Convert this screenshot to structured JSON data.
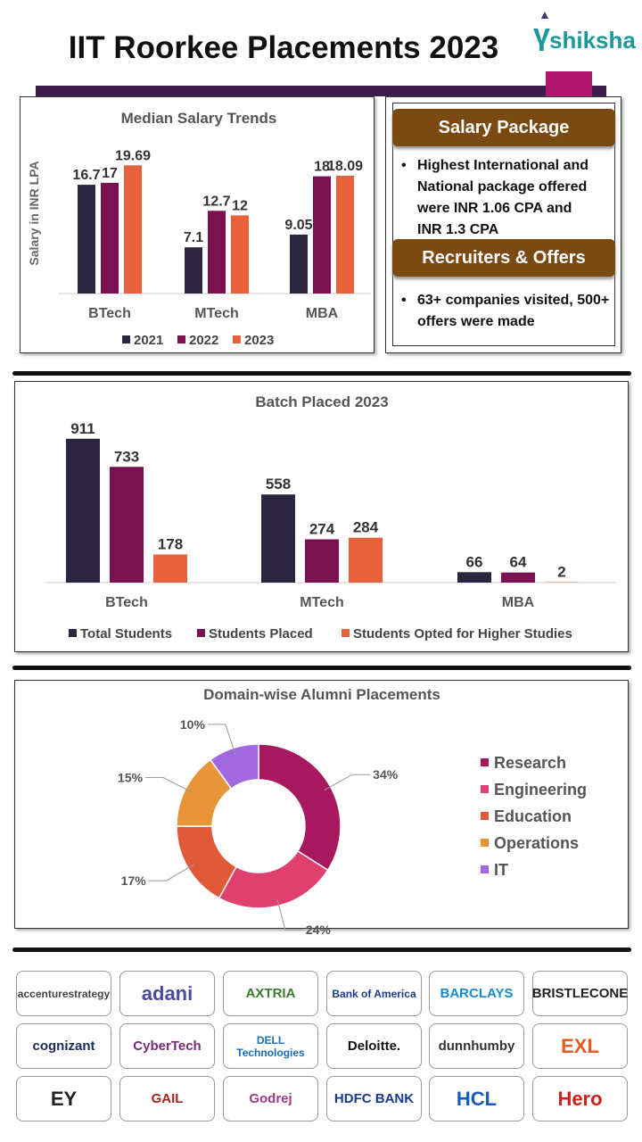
{
  "header": {
    "title": "IIT Roorkee Placements 2023",
    "brand": "shiksha"
  },
  "colors": {
    "y2021": "#2b2540",
    "y2022": "#7a1150",
    "y2023": "#e5623c",
    "band": "#3b1d4a",
    "accent": "#b2176e",
    "pill": "#7a4a12"
  },
  "info": {
    "salary_title": "Salary Package",
    "salary_text": "Highest International and National package offered were INR 1.06 CPA and INR 1.3 CPA",
    "recruiters_title": "Recruiters & Offers",
    "recruiters_text": "63+ companies visited, 500+ offers were made"
  },
  "chart_data": [
    {
      "type": "bar",
      "title": "Median Salary Trends",
      "ylabel": "Salary in INR LPA",
      "xlabel": "",
      "categories": [
        "BTech",
        "MTech",
        "MBA"
      ],
      "series": [
        {
          "name": "2021",
          "values": [
            16.7,
            7.1,
            9.05
          ]
        },
        {
          "name": "2022",
          "values": [
            17,
            12.7,
            18
          ]
        },
        {
          "name": "2023",
          "values": [
            19.69,
            12,
            18.09
          ]
        }
      ],
      "ylim": [
        0,
        20
      ],
      "grid": false,
      "legend": "bottom"
    },
    {
      "type": "bar",
      "title": "Batch Placed 2023",
      "categories": [
        "BTech",
        "MTech",
        "MBA"
      ],
      "series": [
        {
          "name": "Total Students",
          "values": [
            911,
            558,
            66
          ]
        },
        {
          "name": "Students Placed",
          "values": [
            733,
            274,
            64
          ]
        },
        {
          "name": "Students Opted for Higher Studies",
          "values": [
            178,
            284,
            2
          ]
        }
      ],
      "ylim": [
        0,
        950
      ],
      "grid": false,
      "legend": "bottom"
    },
    {
      "type": "pie",
      "donut": true,
      "title": "Domain-wise Alumni Placements",
      "slices": [
        {
          "label": "Research",
          "value": 34,
          "color": "#a8185e"
        },
        {
          "label": "Engineering",
          "value": 24,
          "color": "#e0406e"
        },
        {
          "label": "Education",
          "value": 17,
          "color": "#e05a38"
        },
        {
          "label": "Operations",
          "value": 15,
          "color": "#e8953a"
        },
        {
          "label": "IT",
          "value": 10,
          "color": "#a268e0"
        }
      ],
      "legend": "right"
    }
  ],
  "recruiters": [
    {
      "name": "accenturestrategy",
      "color": "#444"
    },
    {
      "name": "adani",
      "color": "#4a4aa0"
    },
    {
      "name": "AXTRIA",
      "color": "#3a7a30"
    },
    {
      "name": "Bank of America",
      "color": "#1d3a8a"
    },
    {
      "name": "BARCLAYS",
      "color": "#1a8ac8"
    },
    {
      "name": "BRISTLECONE",
      "color": "#222"
    },
    {
      "name": "cognizant",
      "color": "#1a2a5a"
    },
    {
      "name": "CyberTech",
      "color": "#7a2a7a"
    },
    {
      "name": "DELL Technologies",
      "color": "#1a6ab8"
    },
    {
      "name": "Deloitte.",
      "color": "#111"
    },
    {
      "name": "dunnhumby",
      "color": "#333"
    },
    {
      "name": "EXL",
      "color": "#e85a20"
    },
    {
      "name": "EY",
      "color": "#222"
    },
    {
      "name": "GAIL",
      "color": "#b0201a"
    },
    {
      "name": "Godrej",
      "color": "#a03a8a"
    },
    {
      "name": "HDFC BANK",
      "color": "#1a3a8a"
    },
    {
      "name": "HCL",
      "color": "#1a5ab8"
    },
    {
      "name": "Hero",
      "color": "#d0201a"
    }
  ]
}
